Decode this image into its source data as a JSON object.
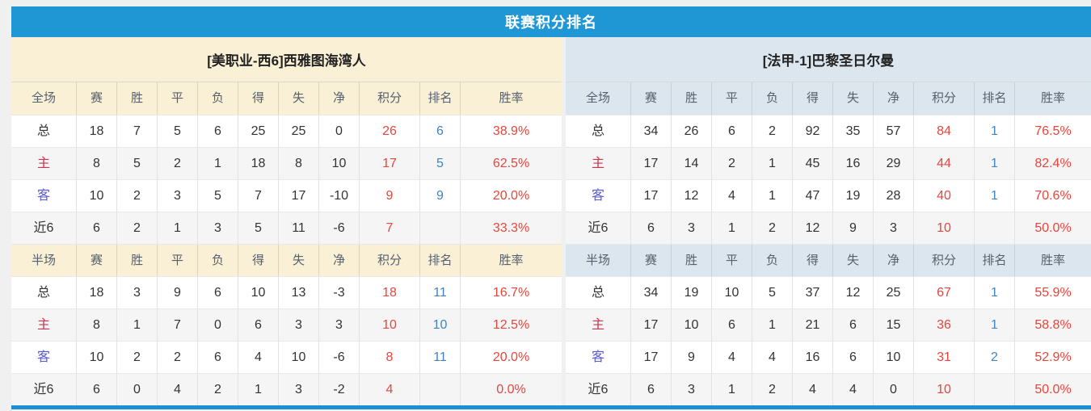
{
  "title": "联赛积分排名",
  "colors": {
    "title_bar_blue": "#1e97d4",
    "left_panel_header_bg": "#faf0d6",
    "right_panel_header_bg": "#dce6ee",
    "alt_row_bg": "#f5f5f5",
    "points_red": "#e8453c",
    "win_rate_red": "#e8453c",
    "rank_blue": "#3d85c6",
    "home_label_red": "#cc3350",
    "away_label_blue": "#5a5acd",
    "bottom_bar_blue": "#1e8fd4"
  },
  "columns": [
    "赛",
    "胜",
    "平",
    "负",
    "得",
    "失",
    "净",
    "积分",
    "排名",
    "胜率"
  ],
  "teams": [
    {
      "name": "[美职业-西6]西雅图海湾人",
      "sections": [
        {
          "label": "全场",
          "rows": [
            {
              "label": "总",
              "cells": [
                "18",
                "7",
                "5",
                "6",
                "25",
                "25",
                "0",
                "26",
                "6",
                "38.9%"
              ]
            },
            {
              "label": "主",
              "cells": [
                "8",
                "5",
                "2",
                "1",
                "18",
                "8",
                "10",
                "17",
                "5",
                "62.5%"
              ]
            },
            {
              "label": "客",
              "cells": [
                "10",
                "2",
                "3",
                "5",
                "7",
                "17",
                "-10",
                "9",
                "9",
                "20.0%"
              ]
            },
            {
              "label": "近6",
              "cells": [
                "6",
                "2",
                "1",
                "3",
                "5",
                "11",
                "-6",
                "7",
                "",
                "33.3%"
              ]
            }
          ]
        },
        {
          "label": "半场",
          "rows": [
            {
              "label": "总",
              "cells": [
                "18",
                "3",
                "9",
                "6",
                "10",
                "13",
                "-3",
                "18",
                "11",
                "16.7%"
              ]
            },
            {
              "label": "主",
              "cells": [
                "8",
                "1",
                "7",
                "0",
                "6",
                "3",
                "3",
                "10",
                "10",
                "12.5%"
              ]
            },
            {
              "label": "客",
              "cells": [
                "10",
                "2",
                "2",
                "6",
                "4",
                "10",
                "-6",
                "8",
                "11",
                "20.0%"
              ]
            },
            {
              "label": "近6",
              "cells": [
                "6",
                "0",
                "4",
                "2",
                "1",
                "3",
                "-2",
                "4",
                "",
                "0.0%"
              ]
            }
          ]
        }
      ]
    },
    {
      "name": "[法甲-1]巴黎圣日尔曼",
      "sections": [
        {
          "label": "全场",
          "rows": [
            {
              "label": "总",
              "cells": [
                "34",
                "26",
                "6",
                "2",
                "92",
                "35",
                "57",
                "84",
                "1",
                "76.5%"
              ]
            },
            {
              "label": "主",
              "cells": [
                "17",
                "14",
                "2",
                "1",
                "45",
                "16",
                "29",
                "44",
                "1",
                "82.4%"
              ]
            },
            {
              "label": "客",
              "cells": [
                "17",
                "12",
                "4",
                "1",
                "47",
                "19",
                "28",
                "40",
                "1",
                "70.6%"
              ]
            },
            {
              "label": "近6",
              "cells": [
                "6",
                "3",
                "1",
                "2",
                "12",
                "9",
                "3",
                "10",
                "",
                "50.0%"
              ]
            }
          ]
        },
        {
          "label": "半场",
          "rows": [
            {
              "label": "总",
              "cells": [
                "34",
                "19",
                "10",
                "5",
                "37",
                "12",
                "25",
                "67",
                "1",
                "55.9%"
              ]
            },
            {
              "label": "主",
              "cells": [
                "17",
                "10",
                "6",
                "1",
                "21",
                "6",
                "15",
                "36",
                "1",
                "58.8%"
              ]
            },
            {
              "label": "客",
              "cells": [
                "17",
                "9",
                "4",
                "4",
                "16",
                "6",
                "10",
                "31",
                "2",
                "52.9%"
              ]
            },
            {
              "label": "近6",
              "cells": [
                "6",
                "3",
                "1",
                "2",
                "4",
                "4",
                "0",
                "10",
                "",
                "50.0%"
              ]
            }
          ]
        }
      ]
    }
  ]
}
